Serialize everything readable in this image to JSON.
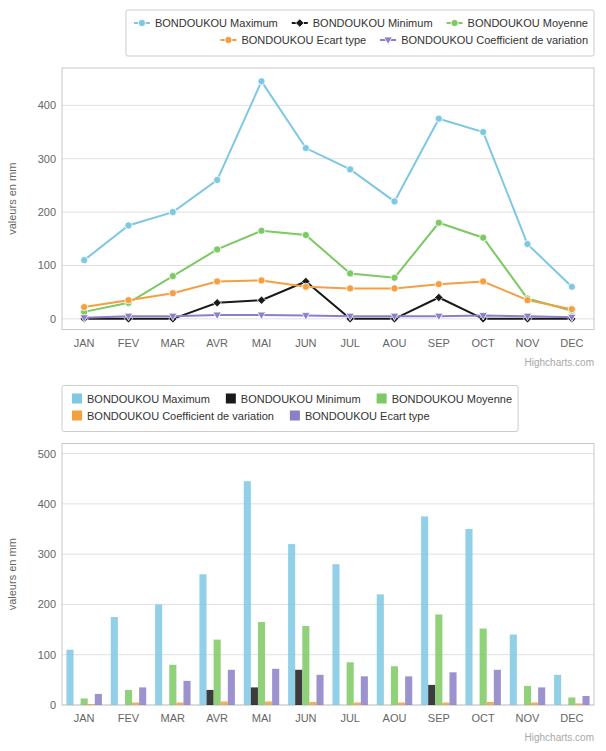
{
  "chart_data": [
    {
      "type": "line",
      "categories": [
        "JAN",
        "FEV",
        "MAR",
        "AVR",
        "MAI",
        "JUN",
        "JUL",
        "AOU",
        "SEP",
        "OCT",
        "NOV",
        "DEC"
      ],
      "series": [
        {
          "name": "BONDOUKOU Maximum",
          "color": "#7ec8e3",
          "marker": "circle",
          "values": [
            110,
            175,
            200,
            260,
            445,
            320,
            280,
            220,
            375,
            350,
            140,
            60
          ]
        },
        {
          "name": "BONDOUKOU Minimum",
          "color": "#1a1a1a",
          "marker": "diamond",
          "values": [
            0,
            0,
            0,
            30,
            35,
            70,
            0,
            0,
            40,
            0,
            0,
            0
          ]
        },
        {
          "name": "BONDOUKOU Moyenne",
          "color": "#7dc963",
          "marker": "circle",
          "values": [
            13,
            30,
            80,
            130,
            165,
            157,
            85,
            77,
            180,
            152,
            38,
            15
          ]
        },
        {
          "name": "BONDOUKOU Ecart type",
          "color": "#f4a042",
          "marker": "circle",
          "values": [
            22,
            35,
            48,
            70,
            72,
            60,
            57,
            57,
            65,
            70,
            35,
            18
          ]
        },
        {
          "name": "BONDOUKOU Coefficient de variation",
          "color": "#8b7fc7",
          "marker": "triangle-down",
          "values": [
            2,
            5,
            5,
            7,
            7,
            6,
            5,
            5,
            5,
            6,
            5,
            3
          ]
        }
      ],
      "y_label": "valeurs en mm",
      "ylim": [
        -20,
        470
      ],
      "yticks": [
        0,
        100,
        200,
        300,
        400
      ],
      "grid": true,
      "legend": "upper right",
      "annotation": "Highcharts.com"
    },
    {
      "type": "bar",
      "categories": [
        "JAN",
        "FEV",
        "MAR",
        "AVR",
        "MAI",
        "JUN",
        "JUL",
        "AOU",
        "SEP",
        "OCT",
        "NOV",
        "DEC"
      ],
      "series": [
        {
          "name": "BONDOUKOU Maximum",
          "color": "#7ec8e3",
          "values": [
            110,
            175,
            200,
            260,
            445,
            320,
            280,
            220,
            375,
            350,
            140,
            60
          ]
        },
        {
          "name": "BONDOUKOU Minimum",
          "color": "#1a1a1a",
          "values": [
            0,
            0,
            0,
            30,
            35,
            70,
            0,
            0,
            40,
            0,
            0,
            0
          ]
        },
        {
          "name": "BONDOUKOU Moyenne",
          "color": "#7dc963",
          "values": [
            13,
            30,
            80,
            130,
            165,
            157,
            85,
            77,
            180,
            152,
            38,
            15
          ]
        },
        {
          "name": "BONDOUKOU Coefficient de variation",
          "color": "#f4a042",
          "values": [
            2,
            5,
            5,
            7,
            7,
            6,
            5,
            5,
            5,
            6,
            5,
            3
          ]
        },
        {
          "name": "BONDOUKOU Ecart type",
          "color": "#8b7fc7",
          "values": [
            22,
            35,
            48,
            70,
            72,
            60,
            57,
            57,
            65,
            70,
            35,
            18
          ]
        }
      ],
      "y_label": "valeurs en mm",
      "ylim": [
        0,
        520
      ],
      "yticks": [
        0,
        100,
        200,
        300,
        400,
        500
      ],
      "grid": true,
      "legend": "upper left",
      "annotation": "Highcharts.com"
    }
  ]
}
